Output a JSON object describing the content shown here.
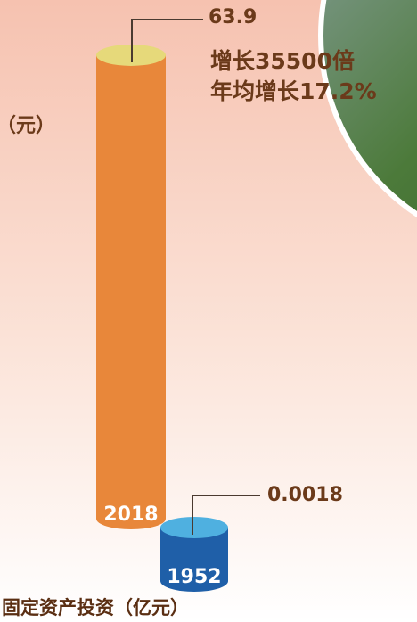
{
  "chart_data": {
    "type": "cylinder",
    "log_scale": true,
    "title": "固定资产投资（亿元）",
    "unit_label": "（元）",
    "categories": [
      "1952",
      "2018"
    ],
    "values": [
      0.0018,
      63.9
    ],
    "colors": [
      "#1f5fa8",
      "#e8873a"
    ],
    "cap_colors": [
      "#4fb0e0",
      "#e6d97a"
    ],
    "annotations": [
      "增长35500倍",
      "年均增长17.2%"
    ]
  }
}
